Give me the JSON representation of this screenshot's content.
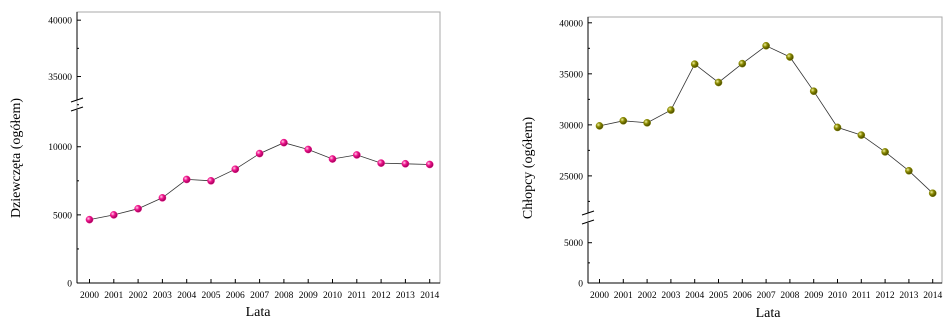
{
  "chart_data": [
    {
      "type": "line",
      "xlabel": "Lata",
      "ylabel": "Dziewczęta (ogółem)",
      "x": [
        "2000",
        "2001",
        "2002",
        "2003",
        "2004",
        "2005",
        "2006",
        "2007",
        "2008",
        "2009",
        "2010",
        "2011",
        "2012",
        "2013",
        "2014"
      ],
      "series": [
        {
          "values": [
            4650,
            5000,
            5450,
            6250,
            7600,
            7500,
            8350,
            9500,
            10300,
            9800,
            9100,
            9400,
            8800,
            8750,
            8700
          ]
        }
      ],
      "axis_break": {
        "lower_range": [
          0,
          11500
        ],
        "upper_range": [
          32500,
          41000
        ]
      },
      "y_ticks": [
        0,
        5000,
        10000,
        35000,
        40000
      ],
      "grid": false,
      "marker_color": "#f0148c"
    },
    {
      "type": "line",
      "xlabel": "Lata",
      "ylabel": "Chłopcy (ogółem)",
      "x": [
        "2000",
        "2001",
        "2002",
        "2003",
        "2004",
        "2005",
        "2006",
        "2007",
        "2008",
        "2009",
        "2010",
        "2011",
        "2012",
        "2013",
        "2014"
      ],
      "series": [
        {
          "values": [
            29900,
            30400,
            30200,
            31450,
            35950,
            34150,
            36000,
            37750,
            36650,
            33300,
            29750,
            29000,
            27350,
            25500,
            23300
          ]
        }
      ],
      "axis_break": {
        "lower_range": [
          0,
          7000
        ],
        "upper_range": [
          21500,
          41000
        ]
      },
      "y_ticks": [
        0,
        5000,
        25000,
        30000,
        35000,
        40000
      ],
      "grid": false,
      "marker_color": "#8a8a00"
    }
  ]
}
